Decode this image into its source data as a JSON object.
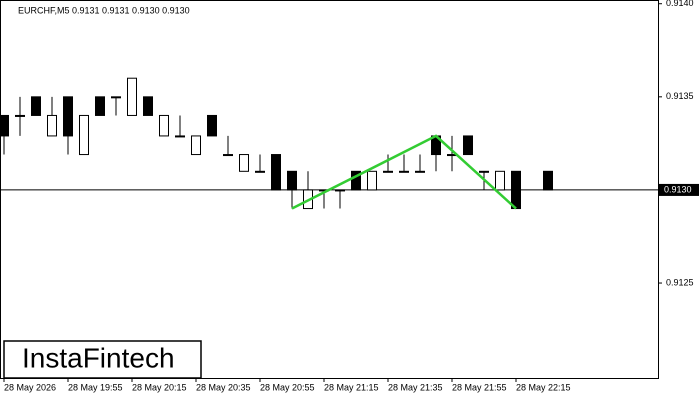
{
  "chart_data": {
    "type": "candlestick",
    "header": "EURCHF,M5  0.9131 0.9131 0.9130 0.9130",
    "categories": [
      "28 May 2026",
      null,
      null,
      null,
      "28 May 19:55",
      null,
      null,
      null,
      "28 May 20:15",
      null,
      null,
      null,
      "28 May 20:35",
      null,
      null,
      null,
      "28 May 20:55",
      null,
      null,
      null,
      "28 May 21:15",
      null,
      null,
      null,
      "28 May 21:35",
      null,
      null,
      null,
      "28 May 21:55",
      null,
      null,
      null,
      "28 May 22:15",
      null,
      null
    ],
    "open": [
      0.9134,
      0.9134,
      0.9135,
      0.91329,
      0.9135,
      0.91319,
      0.9135,
      0.9135,
      0.9134,
      0.9135,
      0.91329,
      0.91329,
      0.91319,
      0.9134,
      0.91319,
      0.9131,
      0.9131,
      0.91319,
      0.9131,
      0.9129,
      0.913,
      0.913,
      0.9131,
      0.913,
      0.9131,
      0.9131,
      0.9131,
      0.91329,
      0.91319,
      0.91329,
      0.9131,
      0.913,
      0.9131,
      null,
      0.9131
    ],
    "high": [
      0.9134,
      0.9135,
      0.9135,
      0.9135,
      0.9135,
      0.9134,
      0.9135,
      0.9135,
      0.9136,
      0.9135,
      0.9134,
      0.9134,
      0.91329,
      0.9134,
      0.91329,
      0.91319,
      0.91319,
      0.91319,
      0.9131,
      0.9131,
      0.913,
      0.913,
      0.9131,
      0.9131,
      0.91319,
      0.91319,
      0.91319,
      0.91329,
      0.91329,
      0.91329,
      0.9131,
      0.9131,
      0.9131,
      null,
      0.9131
    ],
    "low": [
      0.91319,
      0.91329,
      0.9134,
      0.91329,
      0.91319,
      0.91319,
      0.9134,
      0.9134,
      0.9134,
      0.9134,
      0.91329,
      0.91329,
      0.91319,
      0.91329,
      0.91319,
      0.9131,
      0.9131,
      0.913,
      0.9129,
      0.9129,
      0.9129,
      0.9129,
      0.913,
      0.913,
      0.9131,
      0.9131,
      0.9131,
      0.9131,
      0.9131,
      0.91319,
      0.913,
      0.913,
      0.9129,
      null,
      0.913
    ],
    "close": [
      0.91329,
      0.9134,
      0.9134,
      0.9134,
      0.91329,
      0.9134,
      0.9134,
      0.9135,
      0.9136,
      0.9134,
      0.9134,
      0.91329,
      0.91329,
      0.91329,
      0.91319,
      0.91319,
      0.9131,
      0.913,
      0.913,
      0.913,
      0.913,
      0.913,
      0.913,
      0.9131,
      0.9131,
      0.9131,
      0.9131,
      0.91319,
      0.91319,
      0.91319,
      0.9131,
      0.9131,
      0.9129,
      null,
      0.913
    ],
    "pattern": {
      "color": "#33cc33",
      "x": [
        18,
        27,
        32
      ],
      "values": [
        0.9129,
        0.91329,
        0.9129
      ]
    },
    "current_price": {
      "value": 0.913,
      "label": "0.9130"
    },
    "ylim": [
      0.91199,
      0.91402
    ],
    "yticks": [
      {
        "value": 0.914,
        "label": "0.9140"
      },
      0.9135,
      {
        "value": 0.913,
        "label": "0.9130"
      },
      0.9125
    ],
    "logo": "InstaFintech"
  }
}
